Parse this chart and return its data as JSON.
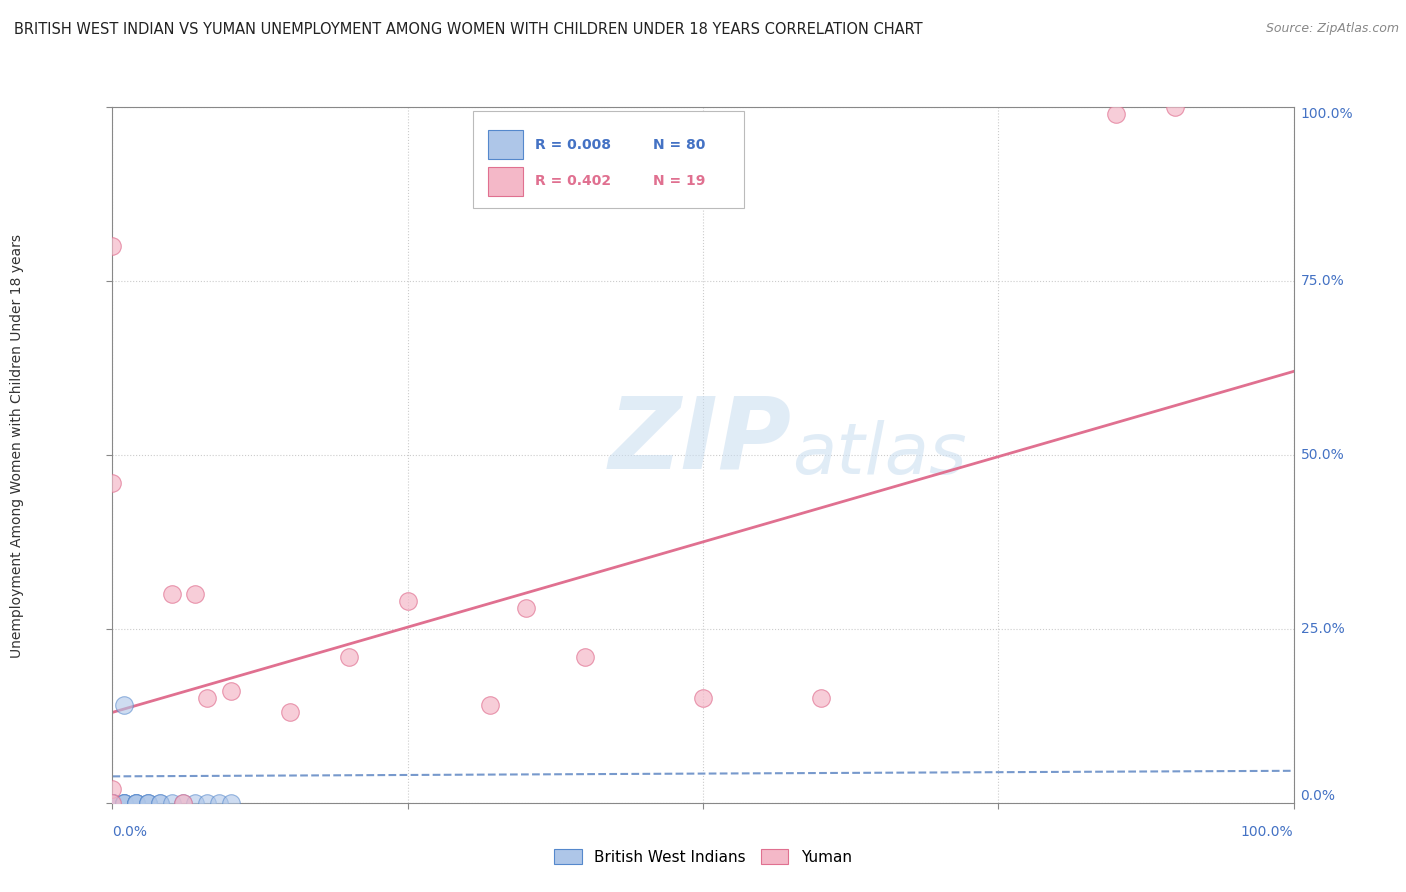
{
  "title": "BRITISH WEST INDIAN VS YUMAN UNEMPLOYMENT AMONG WOMEN WITH CHILDREN UNDER 18 YEARS CORRELATION CHART",
  "source": "Source: ZipAtlas.com",
  "ylabel": "Unemployment Among Women with Children Under 18 years",
  "legend_blue_r": "R = 0.008",
  "legend_blue_n": "N = 80",
  "legend_pink_r": "R = 0.402",
  "legend_pink_n": "N = 19",
  "legend_blue_label": "British West Indians",
  "legend_pink_label": "Yuman",
  "blue_color": "#aec6e8",
  "pink_color": "#f4b8c8",
  "blue_edge": "#5588cc",
  "pink_edge": "#e07090",
  "blue_line_color": "#7799cc",
  "pink_line_color": "#e07090",
  "background_color": "#ffffff",
  "grid_color": "#cccccc",
  "watermark_zip": "ZIP",
  "watermark_atlas": "atlas",
  "blue_points_x": [
    0.0,
    0.0,
    0.0,
    0.0,
    0.0,
    0.0,
    0.0,
    0.0,
    0.0,
    0.0,
    0.0,
    0.0,
    0.0,
    0.0,
    0.0,
    0.0,
    0.0,
    0.0,
    0.0,
    0.0,
    0.0,
    0.0,
    0.0,
    0.0,
    0.0,
    0.0,
    0.0,
    0.0,
    0.0,
    0.0,
    0.0,
    0.0,
    0.0,
    0.0,
    0.0,
    0.0,
    0.0,
    0.0,
    0.0,
    0.0,
    0.0,
    0.0,
    0.0,
    0.0,
    0.0,
    0.0,
    0.0,
    0.0,
    0.0,
    0.0,
    0.0,
    0.0,
    0.0,
    0.0,
    0.0,
    0.0,
    0.0,
    0.0,
    0.0,
    0.0,
    0.01,
    0.01,
    0.01,
    0.01,
    0.01,
    0.02,
    0.02,
    0.02,
    0.02,
    0.03,
    0.03,
    0.03,
    0.04,
    0.04,
    0.05,
    0.06,
    0.07,
    0.08,
    0.09,
    0.1
  ],
  "blue_points_y": [
    0.0,
    0.0,
    0.0,
    0.0,
    0.0,
    0.0,
    0.0,
    0.0,
    0.0,
    0.0,
    0.0,
    0.0,
    0.0,
    0.0,
    0.0,
    0.0,
    0.0,
    0.0,
    0.0,
    0.0,
    0.0,
    0.0,
    0.0,
    0.0,
    0.0,
    0.0,
    0.0,
    0.0,
    0.0,
    0.0,
    0.0,
    0.0,
    0.0,
    0.0,
    0.0,
    0.0,
    0.0,
    0.0,
    0.0,
    0.0,
    0.0,
    0.0,
    0.0,
    0.0,
    0.0,
    0.0,
    0.0,
    0.0,
    0.0,
    0.0,
    0.0,
    0.0,
    0.0,
    0.0,
    0.0,
    0.0,
    0.0,
    0.0,
    0.0,
    0.0,
    0.0,
    0.0,
    0.0,
    0.0,
    0.14,
    0.0,
    0.0,
    0.0,
    0.0,
    0.0,
    0.0,
    0.0,
    0.0,
    0.0,
    0.0,
    0.0,
    0.0,
    0.0,
    0.0,
    0.0
  ],
  "pink_points_x": [
    0.0,
    0.0,
    0.0,
    0.05,
    0.07,
    0.1,
    0.15,
    0.35,
    0.4,
    0.5,
    0.6,
    0.85,
    0.0,
    0.06,
    0.08,
    0.2,
    0.25,
    0.32,
    0.9
  ],
  "pink_points_y": [
    0.8,
    0.46,
    0.02,
    0.3,
    0.3,
    0.16,
    0.13,
    0.28,
    0.21,
    0.15,
    0.15,
    0.99,
    0.0,
    0.0,
    0.15,
    0.21,
    0.29,
    0.14,
    1.0
  ],
  "blue_line_x": [
    0.0,
    1.0
  ],
  "blue_line_y": [
    0.038,
    0.046
  ],
  "pink_line_x": [
    0.0,
    1.0
  ],
  "pink_line_y": [
    0.13,
    0.62
  ],
  "xlim": [
    0.0,
    1.0
  ],
  "ylim": [
    0.0,
    1.0
  ],
  "title_fontsize": 10.5,
  "source_fontsize": 9,
  "ylabel_fontsize": 10,
  "tick_fontsize": 10
}
